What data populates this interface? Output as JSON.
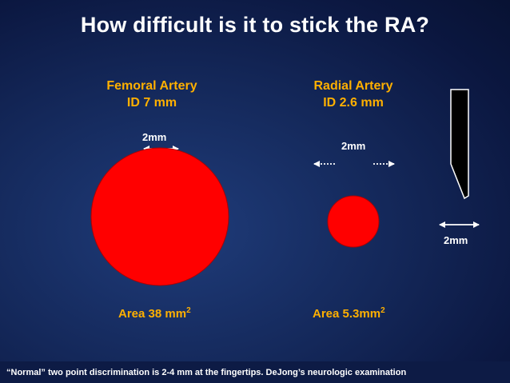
{
  "title": "How difficult is it to stick the RA?",
  "femoral": {
    "name": "Femoral Artery",
    "id": "ID 7 mm",
    "scale_label": "2mm",
    "area_text": "Area 38 mm",
    "area_sup": "2"
  },
  "radial": {
    "name": "Radial Artery",
    "id": "ID  2.6 mm",
    "scale_label": "2mm",
    "area_text": "Area 5.3mm",
    "area_sup": "2"
  },
  "needle": {
    "scale_label": "2mm"
  },
  "footer": {
    "text": "“Normal” two point discrimination is 2-4 mm at the fingertips.   DeJong’s neurologic examination"
  },
  "colors": {
    "title": "#ffffff",
    "heading": "#ffb000",
    "circle": "#ff0000",
    "background": "#14285a"
  }
}
